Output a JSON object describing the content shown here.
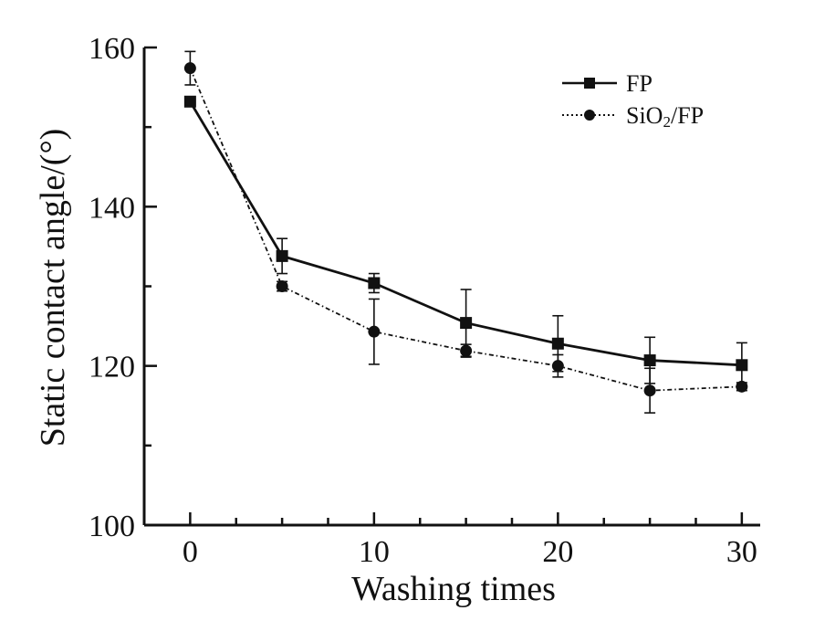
{
  "chart_data": {
    "type": "line",
    "xlabel": "Washing times",
    "ylabel": "Static contact angle/(°)",
    "xlim": [
      -2.5,
      31
    ],
    "ylim": [
      100,
      160
    ],
    "x_ticks": [
      0,
      10,
      20,
      30
    ],
    "y_ticks": [
      100,
      120,
      140,
      160
    ],
    "x_minor_step": 2.5,
    "y_minor_step": 10,
    "legend_position": "top-right",
    "series": [
      {
        "name": "FP",
        "marker": "square",
        "line_style": "solid",
        "x": [
          0,
          5,
          10,
          15,
          20,
          25,
          30
        ],
        "y": [
          153.2,
          133.8,
          130.4,
          125.4,
          122.8,
          120.7,
          120.1
        ],
        "error": [
          0.5,
          2.2,
          1.2,
          4.2,
          3.5,
          2.9,
          2.8
        ]
      },
      {
        "name": "SiO2/FP",
        "marker": "circle",
        "line_style": "dashed",
        "x": [
          0,
          5,
          10,
          15,
          20,
          25,
          30
        ],
        "y": [
          157.4,
          130.0,
          124.3,
          121.9,
          120.0,
          116.9,
          117.4
        ],
        "error": [
          2.1,
          0.6,
          4.1,
          0.8,
          1.4,
          2.8,
          0.5
        ]
      }
    ]
  },
  "legend": {
    "fp_label": "FP",
    "sio2_prefix": "SiO",
    "sio2_subscript": "2",
    "sio2_suffix": "/FP"
  }
}
